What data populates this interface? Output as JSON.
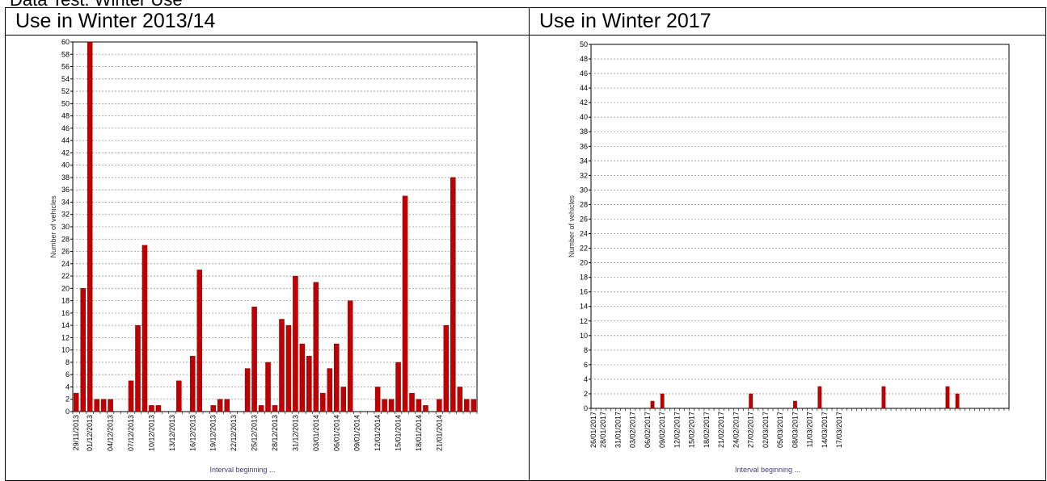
{
  "page": {
    "clipped_title": "Data Test: Winter Use"
  },
  "table": {
    "headers": [
      "Use in Winter 2013/14",
      "Use in Winter 2017"
    ]
  },
  "chart_data": [
    {
      "type": "bar",
      "ylabel": "Number of vehicles",
      "xlabel": "Interval beginning ...",
      "ylim": [
        0,
        60
      ],
      "ytick_step": 2,
      "grid": true,
      "bar_color": "#c00000",
      "date_ticks": [
        "29/11/2013",
        "01/12/2013",
        "04/12/2013",
        "07/12/2013",
        "10/12/2013",
        "13/12/2013",
        "16/12/2013",
        "19/12/2013",
        "22/12/2013",
        "25/12/2013",
        "28/12/2013",
        "31/12/2013",
        "03/01/2014",
        "06/01/2014",
        "09/01/2014",
        "12/01/2014",
        "15/01/2014",
        "18/01/2014",
        "21/01/2014"
      ],
      "start_date": "29/11/2013",
      "values": [
        3,
        20,
        60,
        2,
        2,
        2,
        0,
        0,
        5,
        14,
        27,
        1,
        1,
        0,
        0,
        5,
        0,
        9,
        23,
        0,
        1,
        2,
        2,
        0,
        0,
        7,
        17,
        1,
        8,
        1,
        15,
        14,
        22,
        11,
        9,
        21,
        3,
        7,
        11,
        4,
        18,
        0,
        0,
        0,
        4,
        2,
        2,
        8,
        35,
        3,
        2,
        1,
        0,
        2,
        14,
        38,
        4,
        2,
        2
      ]
    },
    {
      "type": "bar",
      "ylabel": "Number of vehicles",
      "xlabel": "Interval beginning ...",
      "ylim": [
        0,
        50
      ],
      "ytick_step": 2,
      "grid": true,
      "bar_color": "#c00000",
      "date_ticks": [
        "26/01/2017",
        "28/01/2017",
        "31/01/2017",
        "03/02/2017",
        "06/02/2017",
        "09/02/2017",
        "12/02/2017",
        "15/02/2017",
        "18/02/2017",
        "21/02/2017",
        "24/02/2017",
        "27/02/2017",
        "02/03/2017",
        "05/03/2017",
        "08/03/2017",
        "11/03/2017",
        "14/03/2017",
        "17/03/2017"
      ],
      "start_date": "26/01/2017",
      "values": [
        0,
        0,
        0,
        0,
        0,
        0,
        0,
        0,
        0,
        0,
        0,
        0,
        1,
        0,
        2,
        0,
        0,
        0,
        0,
        0,
        0,
        0,
        0,
        0,
        0,
        0,
        0,
        0,
        0,
        0,
        0,
        0,
        2,
        0,
        0,
        0,
        0,
        0,
        0,
        0,
        0,
        1,
        0,
        0,
        0,
        0,
        3,
        0,
        0,
        0,
        0,
        0,
        0,
        0,
        0,
        0,
        0,
        0,
        0,
        3,
        0,
        0,
        0,
        0,
        0,
        0,
        0,
        0,
        0,
        0,
        0,
        0,
        3,
        0,
        2,
        0,
        0,
        0,
        0,
        0,
        0,
        0,
        0,
        0,
        0
      ]
    }
  ]
}
